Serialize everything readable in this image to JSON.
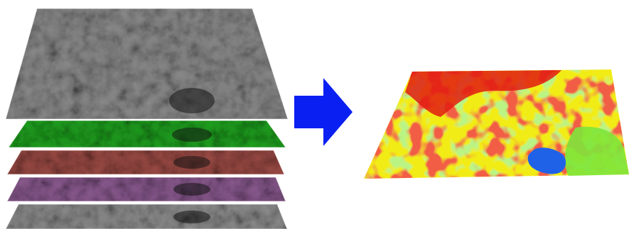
{
  "diagram": {
    "input_layers": [
      {
        "name": "panchromatic",
        "tint": "#8a8a8a"
      },
      {
        "name": "green-band",
        "tint": "#1fa01f"
      },
      {
        "name": "red-band",
        "tint": "#9a4a44"
      },
      {
        "name": "purple-band",
        "tint": "#8a5a8f"
      },
      {
        "name": "gray-band",
        "tint": "#8c8c8c"
      }
    ],
    "arrow_color": "#0a1ff2",
    "output_classes": [
      {
        "name": "red-class",
        "color": "#e21b10"
      },
      {
        "name": "yellow-class",
        "color": "#f2ec18"
      },
      {
        "name": "green-class",
        "color": "#7ee53a"
      },
      {
        "name": "blue-class",
        "color": "#1f62e8"
      }
    ]
  }
}
